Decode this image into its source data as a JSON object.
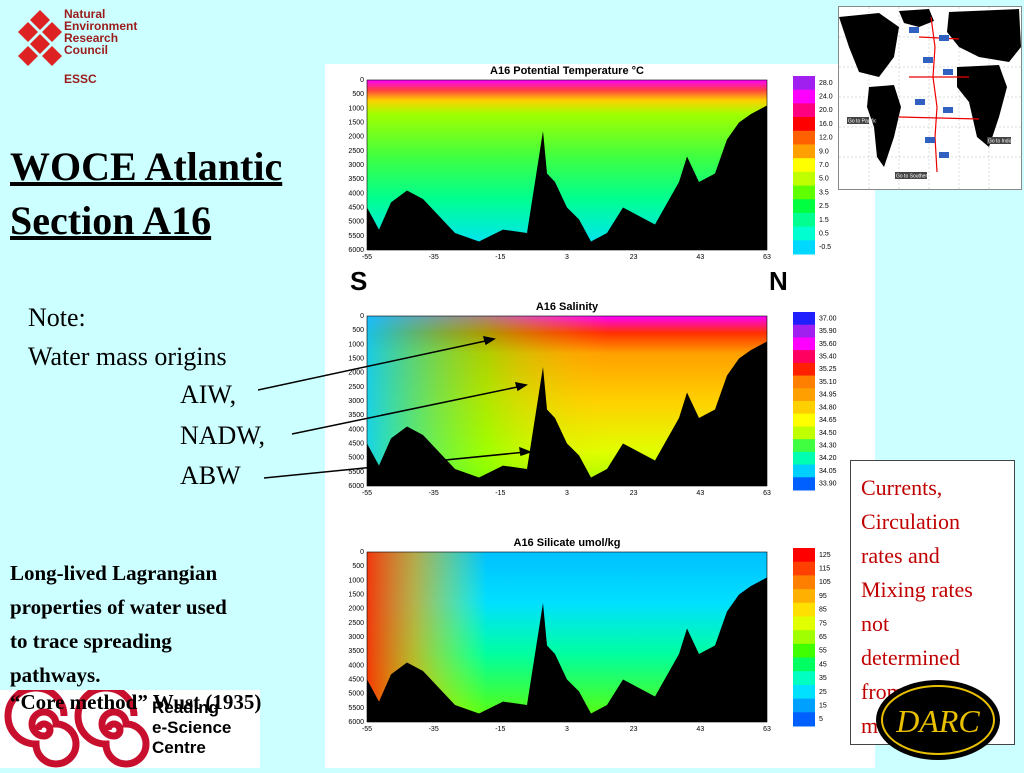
{
  "logo": {
    "lines": [
      "Natural",
      "Environment",
      "Research",
      "Council"
    ],
    "essc": "ESSC"
  },
  "title": {
    "line1": "WOCE Atlantic",
    "line2": "Section A16"
  },
  "note": {
    "heading": "Note:",
    "line": "Water mass origins",
    "masses": [
      "AIW,",
      "NADW,",
      "ABW"
    ]
  },
  "lagrangian": {
    "lines": [
      "Long-lived Lagrangian",
      "properties of water used",
      "to trace spreading",
      "pathways."
    ],
    "core": "“Core method” Wust (1935)"
  },
  "plots": [
    {
      "title": "A16 Potential Temperature °C",
      "legend": [
        "28.0",
        "24.0",
        "20.0",
        "16.0",
        "12.0",
        "9.0",
        "7.0",
        "5.0",
        "3.5",
        "2.5",
        "1.5",
        "0.5",
        "-0.5"
      ],
      "colors": [
        "#a020f0",
        "#ff00ff",
        "#ff0080",
        "#ff0000",
        "#ff6000",
        "#ffa000",
        "#ffff00",
        "#c0ff00",
        "#60ff00",
        "#00ff40",
        "#00ff90",
        "#00ffd0",
        "#00d8ff"
      ]
    },
    {
      "title": "A16 Salinity",
      "legend": [
        "37.00",
        "35.90",
        "35.60",
        "35.40",
        "35.25",
        "35.10",
        "34.95",
        "34.80",
        "34.65",
        "34.50",
        "34.30",
        "34.20",
        "34.05",
        "33.90"
      ],
      "colors": [
        "#2020ff",
        "#a020f0",
        "#ff00ff",
        "#ff0060",
        "#ff2000",
        "#ff8000",
        "#ffa000",
        "#ffd000",
        "#ffff00",
        "#c0ff00",
        "#40ff40",
        "#00ffb0",
        "#00d0ff",
        "#0060ff"
      ]
    },
    {
      "title": "A16 Silicate umol/kg",
      "legend": [
        "125",
        "115",
        "105",
        "95",
        "85",
        "75",
        "65",
        "55",
        "45",
        "35",
        "25",
        "15",
        "5"
      ],
      "colors": [
        "#ff0000",
        "#ff4000",
        "#ff8000",
        "#ffb000",
        "#ffe000",
        "#e0ff00",
        "#a0ff00",
        "#40ff00",
        "#00ff60",
        "#00ffc0",
        "#00e0ff",
        "#00a0ff",
        "#0060ff"
      ]
    }
  ],
  "depth_ticks": [
    "0",
    "500",
    "1000",
    "1500",
    "2000",
    "2500",
    "3000",
    "3500",
    "4000",
    "4500",
    "5000",
    "5500",
    "6000"
  ],
  "lat_ticks": [
    "-55",
    "-35",
    "-15",
    "3",
    "23",
    "43",
    "63"
  ],
  "labels": {
    "south": "S",
    "north": "N"
  },
  "currents": [
    "Currents,",
    "Circulation",
    "rates and",
    "Mixing rates",
    "not",
    "determined",
    "from Core",
    "method"
  ],
  "darc": "DARC",
  "reading": [
    "Reading",
    "e-Science",
    "Centre"
  ],
  "map_labels": [
    "Go to Pacific",
    "Go to Indian",
    "Go to Southern"
  ]
}
